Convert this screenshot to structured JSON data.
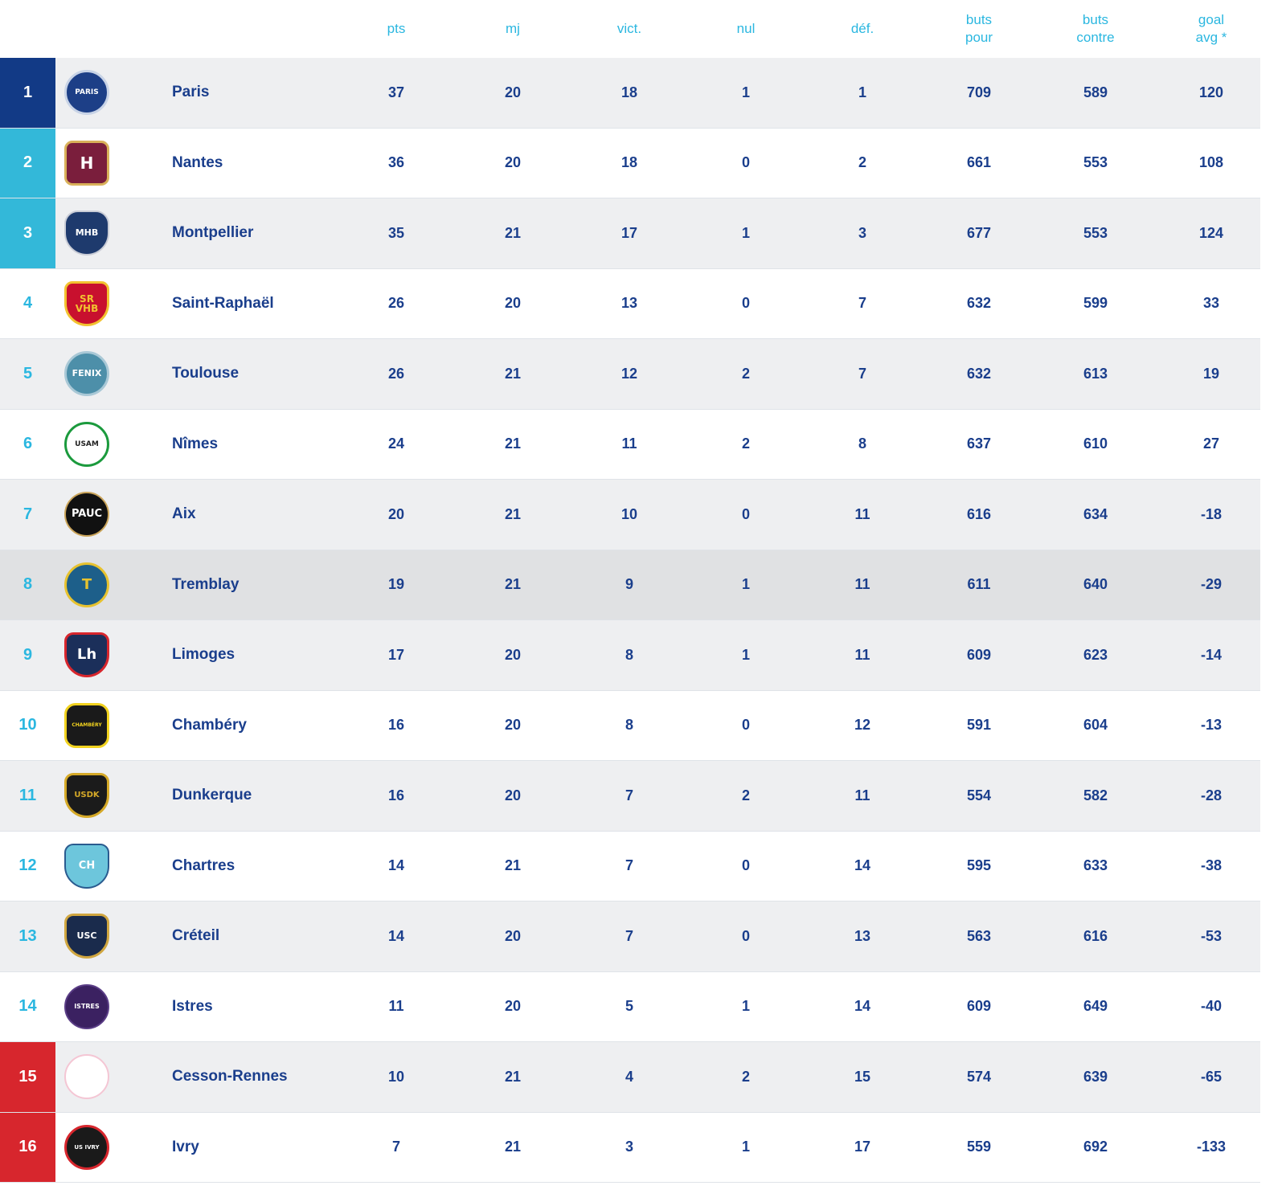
{
  "columns": [
    {
      "key": "pts",
      "label": "pts"
    },
    {
      "key": "mj",
      "label": "mj"
    },
    {
      "key": "vict",
      "label": "vict."
    },
    {
      "key": "nul",
      "label": "nul"
    },
    {
      "key": "def",
      "label": "déf."
    },
    {
      "key": "bp",
      "label": "buts\npour"
    },
    {
      "key": "bc",
      "label": "buts\ncontre"
    },
    {
      "key": "ga",
      "label": "goal\navg *"
    }
  ],
  "colors": {
    "rank_top": "#123a86",
    "rank_qualif": "#33b8d9",
    "rank_relegation": "#d7262d",
    "text_team": "#1a3e8c",
    "text_header": "#2bb7e0"
  },
  "rows": [
    {
      "rank": "1",
      "team": "Paris",
      "logo_icon": "psg-crest-icon",
      "logo_text": "PARIS",
      "pts": "37",
      "mj": "20",
      "vict": "18",
      "nul": "1",
      "def": "1",
      "bp": "709",
      "bc": "589",
      "ga": "120",
      "zone": "q1"
    },
    {
      "rank": "2",
      "team": "Nantes",
      "logo_icon": "hbc-nantes-crest-icon",
      "logo_text": "H",
      "pts": "36",
      "mj": "20",
      "vict": "18",
      "nul": "0",
      "def": "2",
      "bp": "661",
      "bc": "553",
      "ga": "108",
      "zone": "q2"
    },
    {
      "rank": "3",
      "team": "Montpellier",
      "logo_icon": "mhb-crest-icon",
      "logo_text": "MHB",
      "pts": "35",
      "mj": "21",
      "vict": "17",
      "nul": "1",
      "def": "3",
      "bp": "677",
      "bc": "553",
      "ga": "124",
      "zone": "q2"
    },
    {
      "rank": "4",
      "team": "Saint-Raphaël",
      "logo_icon": "srvhb-crest-icon",
      "logo_text": "SR\nVHB",
      "pts": "26",
      "mj": "20",
      "vict": "13",
      "nul": "0",
      "def": "7",
      "bp": "632",
      "bc": "599",
      "ga": "33",
      "zone": ""
    },
    {
      "rank": "5",
      "team": "Toulouse",
      "logo_icon": "fenix-crest-icon",
      "logo_text": "FENIX",
      "pts": "26",
      "mj": "21",
      "vict": "12",
      "nul": "2",
      "def": "7",
      "bp": "632",
      "bc": "613",
      "ga": "19",
      "zone": ""
    },
    {
      "rank": "6",
      "team": "Nîmes",
      "logo_icon": "usam-crest-icon",
      "logo_text": "USAM",
      "pts": "24",
      "mj": "21",
      "vict": "11",
      "nul": "2",
      "def": "8",
      "bp": "637",
      "bc": "610",
      "ga": "27",
      "zone": ""
    },
    {
      "rank": "7",
      "team": "Aix",
      "logo_icon": "pauc-crest-icon",
      "logo_text": "PAUC",
      "pts": "20",
      "mj": "21",
      "vict": "10",
      "nul": "0",
      "def": "11",
      "bp": "616",
      "bc": "634",
      "ga": "-18",
      "zone": ""
    },
    {
      "rank": "8",
      "team": "Tremblay",
      "logo_icon": "tremblay-crest-icon",
      "logo_text": "T",
      "pts": "19",
      "mj": "21",
      "vict": "9",
      "nul": "1",
      "def": "11",
      "bp": "611",
      "bc": "640",
      "ga": "-29",
      "zone": "",
      "highlight": true
    },
    {
      "rank": "9",
      "team": "Limoges",
      "logo_icon": "limoges-crest-icon",
      "logo_text": "Lh",
      "pts": "17",
      "mj": "20",
      "vict": "8",
      "nul": "1",
      "def": "11",
      "bp": "609",
      "bc": "623",
      "ga": "-14",
      "zone": ""
    },
    {
      "rank": "10",
      "team": "Chambéry",
      "logo_icon": "chambery-crest-icon",
      "logo_text": "CHAMBÉRY",
      "pts": "16",
      "mj": "20",
      "vict": "8",
      "nul": "0",
      "def": "12",
      "bp": "591",
      "bc": "604",
      "ga": "-13",
      "zone": ""
    },
    {
      "rank": "11",
      "team": "Dunkerque",
      "logo_icon": "usdk-crest-icon",
      "logo_text": "USDK",
      "pts": "16",
      "mj": "20",
      "vict": "7",
      "nul": "2",
      "def": "11",
      "bp": "554",
      "bc": "582",
      "ga": "-28",
      "zone": ""
    },
    {
      "rank": "12",
      "team": "Chartres",
      "logo_icon": "chartres-crest-icon",
      "logo_text": "CH",
      "pts": "14",
      "mj": "21",
      "vict": "7",
      "nul": "0",
      "def": "14",
      "bp": "595",
      "bc": "633",
      "ga": "-38",
      "zone": ""
    },
    {
      "rank": "13",
      "team": "Créteil",
      "logo_icon": "usc-crest-icon",
      "logo_text": "USC",
      "pts": "14",
      "mj": "20",
      "vict": "7",
      "nul": "0",
      "def": "13",
      "bp": "563",
      "bc": "616",
      "ga": "-53",
      "zone": ""
    },
    {
      "rank": "14",
      "team": "Istres",
      "logo_icon": "istres-crest-icon",
      "logo_text": "ISTRES",
      "pts": "11",
      "mj": "20",
      "vict": "5",
      "nul": "1",
      "def": "14",
      "bp": "609",
      "bc": "649",
      "ga": "-40",
      "zone": ""
    },
    {
      "rank": "15",
      "team": "Cesson-Rennes",
      "logo_icon": "cesson-rennes-crest-icon",
      "logo_text": "",
      "pts": "10",
      "mj": "21",
      "vict": "4",
      "nul": "2",
      "def": "15",
      "bp": "574",
      "bc": "639",
      "ga": "-65",
      "zone": "rel"
    },
    {
      "rank": "16",
      "team": "Ivry",
      "logo_icon": "us-ivry-crest-icon",
      "logo_text": "US IVRY",
      "pts": "7",
      "mj": "21",
      "vict": "3",
      "nul": "1",
      "def": "17",
      "bp": "559",
      "bc": "692",
      "ga": "-133",
      "zone": "rel"
    }
  ]
}
